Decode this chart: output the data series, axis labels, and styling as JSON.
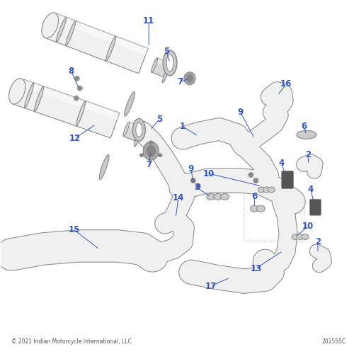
{
  "bg_color": "#ffffff",
  "label_color": "#3355bb",
  "part_color": "#e0e0e0",
  "part_edge_color": "#888888",
  "part_fill": "#f0f0f0",
  "shadow_color": "#c8c8c8",
  "copyright_text": "© 2021 Indian Motorcycle International, LLC",
  "part_number_text": "201555C",
  "fig_width": 5.0,
  "fig_height": 5.0,
  "dpi": 100
}
